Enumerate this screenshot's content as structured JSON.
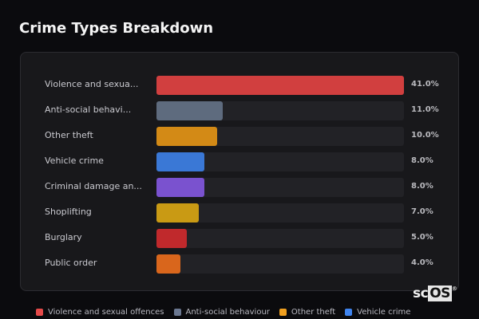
{
  "title": "Crime Types Breakdown",
  "rows": [
    {
      "label": "Violence and sexua...",
      "pct": "41.0%",
      "value": 41.0,
      "color": "#d13f3f"
    },
    {
      "label": "Anti-social behavi...",
      "pct": "11.0%",
      "value": 11.0,
      "color": "#5e6b7e"
    },
    {
      "label": "Other theft",
      "pct": "10.0%",
      "value": 10.0,
      "color": "#d38a16"
    },
    {
      "label": "Vehicle crime",
      "pct": "8.0%",
      "value": 8.0,
      "color": "#3a78d6"
    },
    {
      "label": "Criminal damage an...",
      "pct": "8.0%",
      "value": 8.0,
      "color": "#7a52cf"
    },
    {
      "label": "Shoplifting",
      "pct": "7.0%",
      "value": 7.0,
      "color": "#c99a14"
    },
    {
      "label": "Burglary",
      "pct": "5.0%",
      "value": 5.0,
      "color": "#c0292c"
    },
    {
      "label": "Public order",
      "pct": "4.0%",
      "value": 4.0,
      "color": "#d9661c"
    }
  ],
  "legend": [
    {
      "label": "Violence and sexual offences",
      "color": "#e54a4a"
    },
    {
      "label": "Anti-social behaviour",
      "color": "#6b7891"
    },
    {
      "label": "Other theft",
      "color": "#f0a020"
    },
    {
      "label": "Vehicle crime",
      "color": "#3f84ee"
    }
  ],
  "logo": {
    "sc": "sc",
    "os": "OS",
    "reg": "®"
  },
  "chart_data": {
    "type": "bar",
    "orientation": "horizontal",
    "title": "Crime Types Breakdown",
    "categories": [
      "Violence and sexual offences",
      "Anti-social behaviour",
      "Other theft",
      "Vehicle crime",
      "Criminal damage and arson",
      "Shoplifting",
      "Burglary",
      "Public order"
    ],
    "category_labels_displayed": [
      "Violence and sexua...",
      "Anti-social behavi...",
      "Other theft",
      "Vehicle crime",
      "Criminal damage an...",
      "Shoplifting",
      "Burglary",
      "Public order"
    ],
    "values": [
      41.0,
      11.0,
      10.0,
      8.0,
      8.0,
      7.0,
      5.0,
      4.0
    ],
    "value_labels": [
      "41.0%",
      "11.0%",
      "10.0%",
      "8.0%",
      "8.0%",
      "7.0%",
      "5.0%",
      "4.0%"
    ],
    "unit": "%",
    "xlabel": "",
    "ylabel": "",
    "xlim": [
      0,
      41
    ],
    "grid": false,
    "legend_position": "bottom",
    "legend_entries": [
      "Violence and sexual offences",
      "Anti-social behaviour",
      "Other theft",
      "Vehicle crime"
    ]
  }
}
